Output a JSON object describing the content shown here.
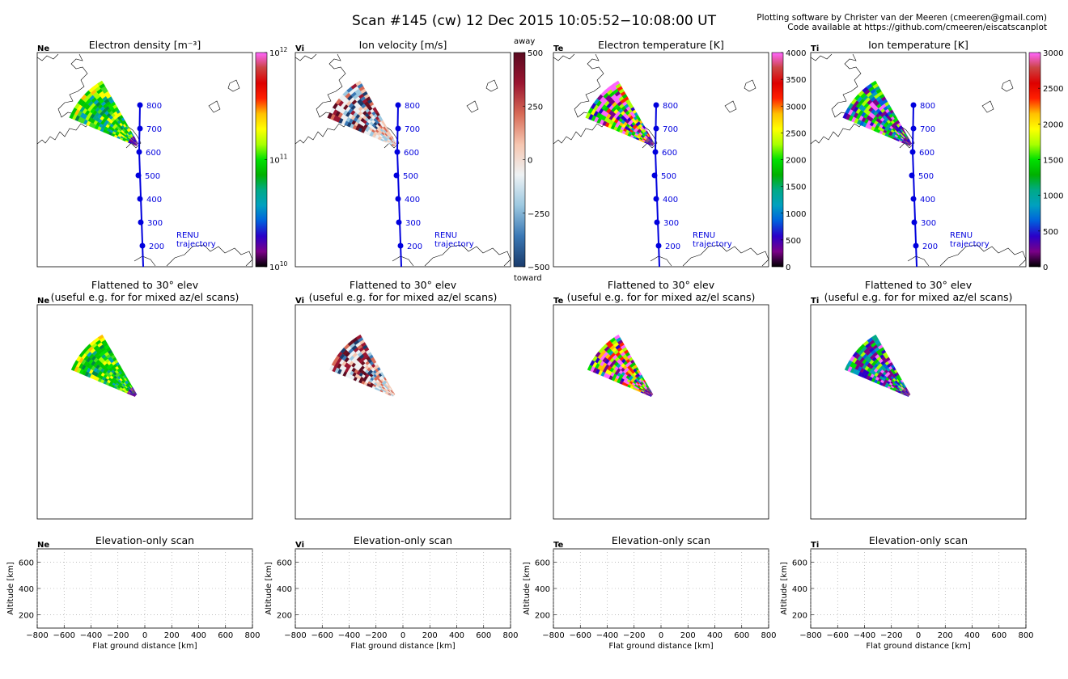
{
  "header": {
    "title": "Scan #145 (cw)   12 Dec 2015 10:05:52−10:08:00 UT",
    "credit_line1": "Plotting software by Christer van der Meeren (cmeeren@gmail.com)",
    "credit_line2": "Code available at https://github.com/cmeeren/eiscatscanplot"
  },
  "chart_data": [
    {
      "type": "heatmap",
      "panel": "map",
      "tag": "Ne",
      "title": "Electron density [m⁻³]",
      "colorbar": {
        "scale": "log",
        "range": [
          10000000000,
          1000000000000
        ],
        "ticks": [
          {
            "base": "10",
            "exp": "10"
          },
          {
            "base": "10",
            "exp": "11"
          },
          {
            "base": "10",
            "exp": "12"
          }
        ],
        "colormap": "nipy_spectral"
      },
      "trajectory": {
        "label_line1": "RENU",
        "label_line2": "trajectory",
        "altitudes_km": [
          800,
          700,
          600,
          500,
          400,
          300,
          200
        ]
      }
    },
    {
      "type": "heatmap",
      "panel": "map",
      "tag": "Vi",
      "title": "Ion velocity [m/s]",
      "colorbar": {
        "scale": "linear",
        "range": [
          -500,
          500
        ],
        "ticks": [
          "500",
          "250",
          "0",
          "−250",
          "−500"
        ],
        "top_label": "away",
        "bottom_label": "toward",
        "colormap": "RdBu_r"
      },
      "trajectory": {
        "label_line1": "RENU",
        "label_line2": "trajectory",
        "altitudes_km": [
          800,
          700,
          600,
          500,
          400,
          300,
          200
        ]
      }
    },
    {
      "type": "heatmap",
      "panel": "map",
      "tag": "Te",
      "title": "Electron temperature [K]",
      "colorbar": {
        "scale": "linear",
        "range": [
          0,
          4000
        ],
        "ticks": [
          "4000",
          "3500",
          "3000",
          "2500",
          "2000",
          "1500",
          "1000",
          "500",
          "0"
        ],
        "colormap": "nipy_spectral"
      },
      "trajectory": {
        "label_line1": "RENU",
        "label_line2": "trajectory",
        "altitudes_km": [
          800,
          700,
          600,
          500,
          400,
          300,
          200
        ]
      }
    },
    {
      "type": "heatmap",
      "panel": "map",
      "tag": "Ti",
      "title": "Ion temperature [K]",
      "colorbar": {
        "scale": "linear",
        "range": [
          0,
          3000
        ],
        "ticks": [
          "3000",
          "2500",
          "2000",
          "1500",
          "1000",
          "500",
          "0"
        ],
        "colormap": "nipy_spectral"
      },
      "trajectory": {
        "label_line1": "RENU",
        "label_line2": "trajectory",
        "altitudes_km": [
          800,
          700,
          600,
          500,
          400,
          300,
          200
        ]
      }
    },
    {
      "type": "heatmap",
      "panel": "flattened",
      "tag": "Ne",
      "title_line1": "Flattened to 30° elev",
      "title_line2": "(useful e.g. for for mixed az/el scans)"
    },
    {
      "type": "heatmap",
      "panel": "flattened",
      "tag": "Vi",
      "title_line1": "Flattened to 30° elev",
      "title_line2": "(useful e.g. for for mixed az/el scans)"
    },
    {
      "type": "heatmap",
      "panel": "flattened",
      "tag": "Te",
      "title_line1": "Flattened to 30° elev",
      "title_line2": "(useful e.g. for for mixed az/el scans)"
    },
    {
      "type": "heatmap",
      "panel": "flattened",
      "tag": "Ti",
      "title_line1": "Flattened to 30° elev",
      "title_line2": "(useful e.g. for for mixed az/el scans)"
    },
    {
      "type": "scatter",
      "panel": "elevation",
      "tag": "Ne",
      "title": "Elevation-only scan",
      "xlabel": "Flat ground distance [km]",
      "ylabel": "Altitude [km]",
      "xlim": [
        -800,
        800
      ],
      "ylim": [
        100,
        700
      ],
      "xticks": [
        "−800",
        "−600",
        "−400",
        "−200",
        "0",
        "200",
        "400",
        "600",
        "800"
      ],
      "yticks": [
        "200",
        "400",
        "600"
      ],
      "grid": true,
      "points": []
    },
    {
      "type": "scatter",
      "panel": "elevation",
      "tag": "Vi",
      "title": "Elevation-only scan",
      "xlabel": "Flat ground distance [km]",
      "ylabel": "Altitude [km]",
      "xlim": [
        -800,
        800
      ],
      "ylim": [
        100,
        700
      ],
      "xticks": [
        "−800",
        "−600",
        "−400",
        "−200",
        "0",
        "200",
        "400",
        "600",
        "800"
      ],
      "yticks": [
        "200",
        "400",
        "600"
      ],
      "grid": true,
      "points": []
    },
    {
      "type": "scatter",
      "panel": "elevation",
      "tag": "Te",
      "title": "Elevation-only scan",
      "xlabel": "Flat ground distance [km]",
      "ylabel": "Altitude [km]",
      "xlim": [
        -800,
        800
      ],
      "ylim": [
        100,
        700
      ],
      "xticks": [
        "−800",
        "−600",
        "−400",
        "−200",
        "0",
        "200",
        "400",
        "600",
        "800"
      ],
      "yticks": [
        "200",
        "400",
        "600"
      ],
      "grid": true,
      "points": []
    },
    {
      "type": "scatter",
      "panel": "elevation",
      "tag": "Ti",
      "title": "Elevation-only scan",
      "xlabel": "Flat ground distance [km]",
      "ylabel": "Altitude [km]",
      "xlim": [
        -800,
        800
      ],
      "ylim": [
        100,
        700
      ],
      "xticks": [
        "−800",
        "−600",
        "−400",
        "−200",
        "0",
        "200",
        "400",
        "600",
        "800"
      ],
      "yticks": [
        "200",
        "400",
        "600"
      ],
      "grid": true,
      "points": []
    }
  ]
}
